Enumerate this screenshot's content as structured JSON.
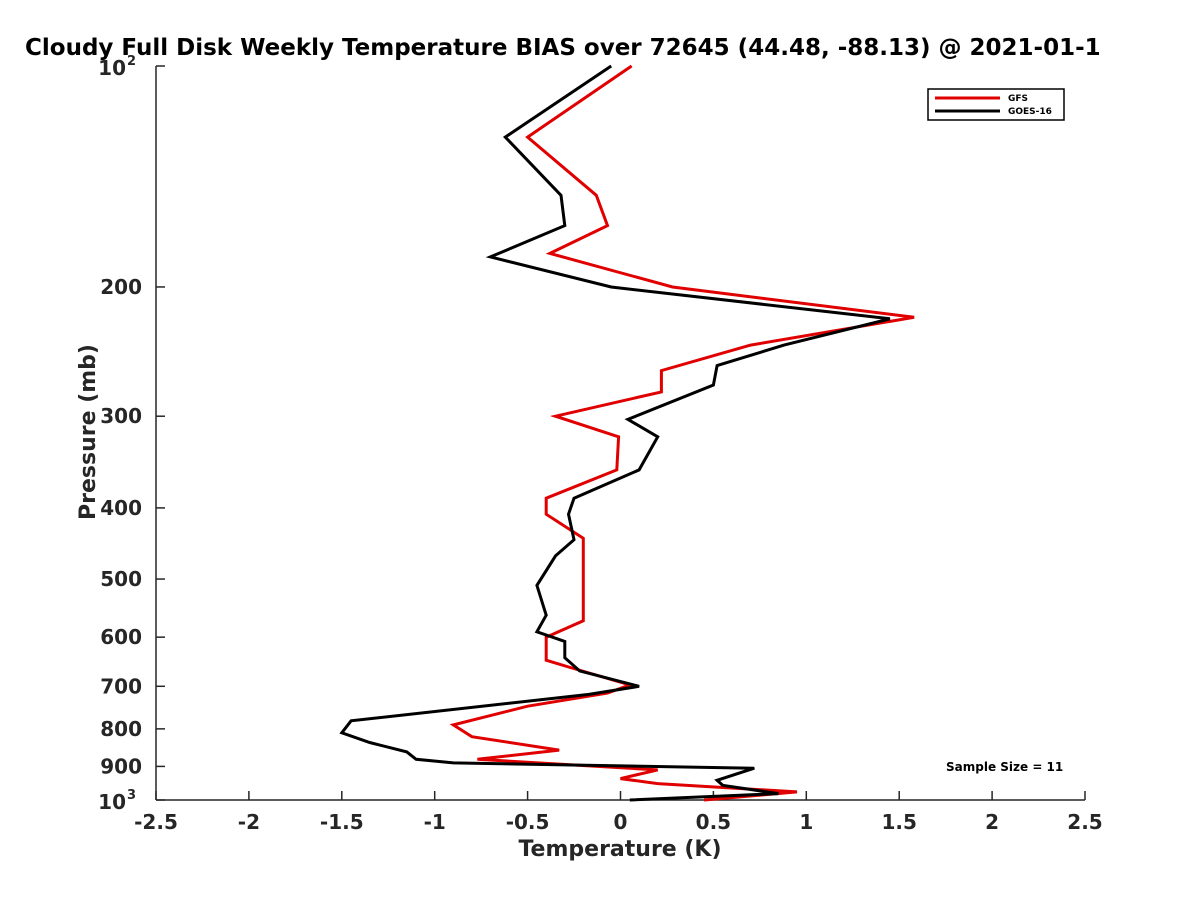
{
  "chart_data": {
    "type": "line",
    "title": "Cloudy Full Disk Weekly Temperature BIAS over 72645 (44.48, -88.13) @ 2021-01-1",
    "xlabel": "Temperature (K)",
    "ylabel": "Pressure (mb)",
    "xlim": [
      -2.5,
      2.5
    ],
    "ylim": [
      100,
      1000
    ],
    "y_scale": "log",
    "y_reversed": true,
    "x_ticks": [
      "-2.5",
      "-2",
      "-1.5",
      "-1",
      "-0.5",
      "0",
      "0.5",
      "1",
      "1.5",
      "2",
      "2.5"
    ],
    "x_tick_values": [
      -2.5,
      -2,
      -1.5,
      -1,
      -0.5,
      0,
      0.5,
      1,
      1.5,
      2,
      2.5
    ],
    "y_ticks": [
      {
        "value": 100,
        "label": "10",
        "sup": "2"
      },
      {
        "value": 200,
        "label": "200",
        "sup": ""
      },
      {
        "value": 300,
        "label": "300",
        "sup": ""
      },
      {
        "value": 400,
        "label": "400",
        "sup": ""
      },
      {
        "value": 500,
        "label": "500",
        "sup": ""
      },
      {
        "value": 600,
        "label": "600",
        "sup": ""
      },
      {
        "value": 700,
        "label": "700",
        "sup": ""
      },
      {
        "value": 800,
        "label": "800",
        "sup": ""
      },
      {
        "value": 900,
        "label": "900",
        "sup": ""
      },
      {
        "value": 1000,
        "label": "10",
        "sup": "3"
      }
    ],
    "legend_position": "top-right",
    "grid": false,
    "annotation": "Sample Size = 11",
    "series": [
      {
        "name": "GFS",
        "color": "#e00000",
        "points": [
          [
            0.06,
            100
          ],
          [
            -0.5,
            125
          ],
          [
            -0.13,
            150
          ],
          [
            -0.07,
            165
          ],
          [
            -0.38,
            180
          ],
          [
            0.28,
            200
          ],
          [
            1.58,
            220
          ],
          [
            0.7,
            240
          ],
          [
            0.22,
            260
          ],
          [
            0.22,
            278
          ],
          [
            -0.35,
            300
          ],
          [
            -0.01,
            320
          ],
          [
            -0.02,
            355
          ],
          [
            -0.4,
            388
          ],
          [
            -0.4,
            408
          ],
          [
            -0.2,
            440
          ],
          [
            -0.2,
            480
          ],
          [
            -0.2,
            530
          ],
          [
            -0.2,
            570
          ],
          [
            -0.4,
            600
          ],
          [
            -0.4,
            645
          ],
          [
            -0.27,
            660
          ],
          [
            0.05,
            697
          ],
          [
            -0.07,
            715
          ],
          [
            -0.5,
            745
          ],
          [
            -0.9,
            790
          ],
          [
            -0.8,
            820
          ],
          [
            -0.33,
            855
          ],
          [
            -0.77,
            880
          ],
          [
            0.2,
            910
          ],
          [
            0.0,
            935
          ],
          [
            0.2,
            950
          ],
          [
            0.95,
            975
          ],
          [
            0.45,
            1000
          ]
        ]
      },
      {
        "name": "GOES-16",
        "color": "#000000",
        "points": [
          [
            -0.05,
            100
          ],
          [
            -0.62,
            125
          ],
          [
            -0.32,
            150
          ],
          [
            -0.3,
            165
          ],
          [
            -0.7,
            182
          ],
          [
            -0.05,
            200
          ],
          [
            1.45,
            221
          ],
          [
            0.88,
            240
          ],
          [
            0.52,
            256
          ],
          [
            0.5,
            272
          ],
          [
            0.04,
            303
          ],
          [
            0.2,
            320
          ],
          [
            0.1,
            355
          ],
          [
            -0.25,
            388
          ],
          [
            -0.28,
            408
          ],
          [
            -0.25,
            442
          ],
          [
            -0.35,
            465
          ],
          [
            -0.45,
            510
          ],
          [
            -0.4,
            560
          ],
          [
            -0.45,
            590
          ],
          [
            -0.3,
            608
          ],
          [
            -0.3,
            640
          ],
          [
            -0.22,
            667
          ],
          [
            0.1,
            700
          ],
          [
            -0.17,
            718
          ],
          [
            -1.45,
            780
          ],
          [
            -1.5,
            810
          ],
          [
            -1.35,
            835
          ],
          [
            -1.15,
            860
          ],
          [
            -1.1,
            880
          ],
          [
            -0.9,
            890
          ],
          [
            0.72,
            905
          ],
          [
            0.52,
            940
          ],
          [
            0.55,
            955
          ],
          [
            0.85,
            980
          ],
          [
            0.05,
            1000
          ]
        ]
      }
    ]
  }
}
